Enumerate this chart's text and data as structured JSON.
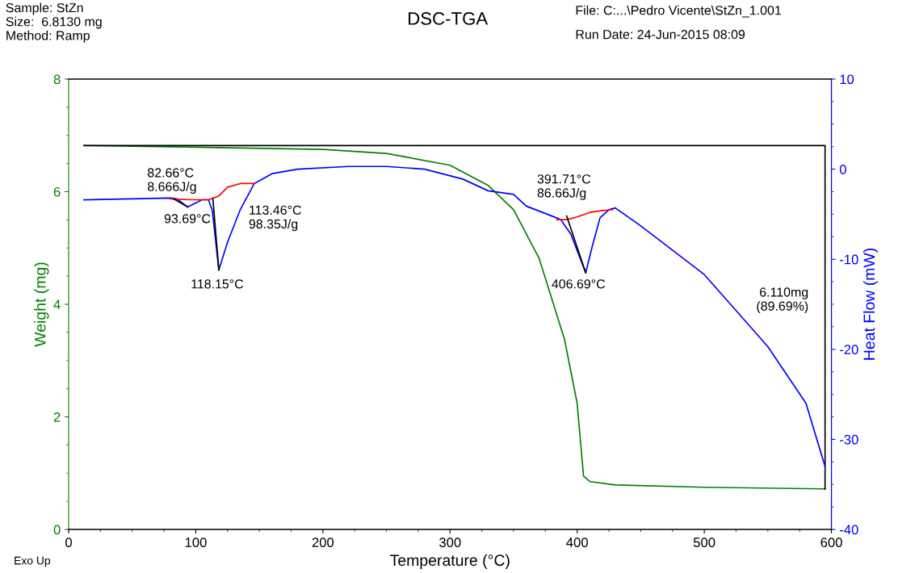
{
  "chart_data": {
    "type": "line",
    "title": "DSC-TGA",
    "xlabel": "Temperature (°C)",
    "ylabel": "Weight (mg)",
    "y2label": "Heat Flow (mW)",
    "xlim": [
      0,
      600
    ],
    "xticks": [
      0,
      100,
      200,
      300,
      400,
      500,
      600
    ],
    "ylim": [
      0,
      8
    ],
    "yticks": [
      0,
      2,
      4,
      6,
      8
    ],
    "y2lim": [
      -40,
      10
    ],
    "y2ticks": [
      -40,
      -30,
      -20,
      -10,
      0,
      10
    ],
    "grid": false,
    "legend": false,
    "marker": "none",
    "line_style": "solid",
    "series": [
      {
        "color": "#008000",
        "x": [
          12,
          100,
          200,
          250,
          300,
          330,
          350,
          370,
          390,
          400,
          405,
          410,
          430,
          500,
          595
        ],
        "values": [
          6.82,
          6.79,
          6.75,
          6.68,
          6.47,
          6.11,
          5.68,
          4.82,
          3.38,
          2.24,
          0.95,
          0.85,
          0.79,
          0.75,
          0.72
        ]
      },
      {
        "color": "#0000ff",
        "axis": "y2",
        "x": [
          12,
          50,
          80,
          85,
          93.69,
          105,
          110,
          113,
          118.15,
          125,
          135,
          146,
          160,
          180,
          220,
          250,
          280,
          310,
          330,
          340,
          350,
          360,
          380,
          387,
          395,
          406.69,
          412,
          418,
          425,
          430,
          450,
          500,
          550,
          580,
          595
        ],
        "values": [
          -3.4,
          -3.3,
          -3.2,
          -3.3,
          -4.2,
          -3.4,
          -3.4,
          -4.6,
          -11.2,
          -8.1,
          -4.5,
          -1.6,
          -0.5,
          0.0,
          0.3,
          0.3,
          0.0,
          -1.1,
          -2.4,
          -2.6,
          -2.8,
          -4.1,
          -5.2,
          -5.6,
          -7.2,
          -11.5,
          -8.5,
          -5.4,
          -4.5,
          -4.3,
          -6.3,
          -11.7,
          -19.7,
          -26.0,
          -33.0
        ]
      },
      {
        "color": "#ff0000",
        "axis": "y2",
        "x": [
          80,
          95,
          110,
          118,
          125,
          135,
          146
        ],
        "values": [
          -3.3,
          -3.4,
          -3.4,
          -3.0,
          -2.0,
          -1.6,
          -1.6
        ]
      },
      {
        "color": "#ff0000",
        "axis": "y2",
        "x": [
          384,
          392,
          400,
          410,
          420,
          428
        ],
        "values": [
          -5.6,
          -5.6,
          -5.3,
          -4.8,
          -4.6,
          -4.5
        ]
      },
      {
        "color": "#000000",
        "axis": "y2",
        "x": [
          82.66,
          93.69
        ],
        "values": [
          -3.3,
          -4.2
        ]
      },
      {
        "color": "#000000",
        "axis": "y2",
        "x": [
          113.46,
          118.15
        ],
        "values": [
          -3.3,
          -11.2
        ]
      },
      {
        "color": "#000000",
        "axis": "y2",
        "x": [
          391.71,
          406.69
        ],
        "values": [
          -5.2,
          -11.5
        ]
      },
      {
        "color": "#000000",
        "x": [
          12,
          595,
          595
        ],
        "values": [
          6.82,
          6.82,
          0.72
        ]
      }
    ],
    "annotations": [
      "82.66°C\n8.666J/g",
      "93.69°C",
      "113.46°C\n98.35J/g",
      "118.15°C",
      "391.71°C\n86.66J/g",
      "406.69°C",
      "6.110mg\n(89.69%)",
      "Sample: StZn\nSize:  6.8130 mg\nMethod: Ramp",
      "File: C:...\\Pedro Vicente\\StZn_1.001",
      "Run Date: 24-Jun-2015 08:09",
      "Exo Up"
    ]
  }
}
